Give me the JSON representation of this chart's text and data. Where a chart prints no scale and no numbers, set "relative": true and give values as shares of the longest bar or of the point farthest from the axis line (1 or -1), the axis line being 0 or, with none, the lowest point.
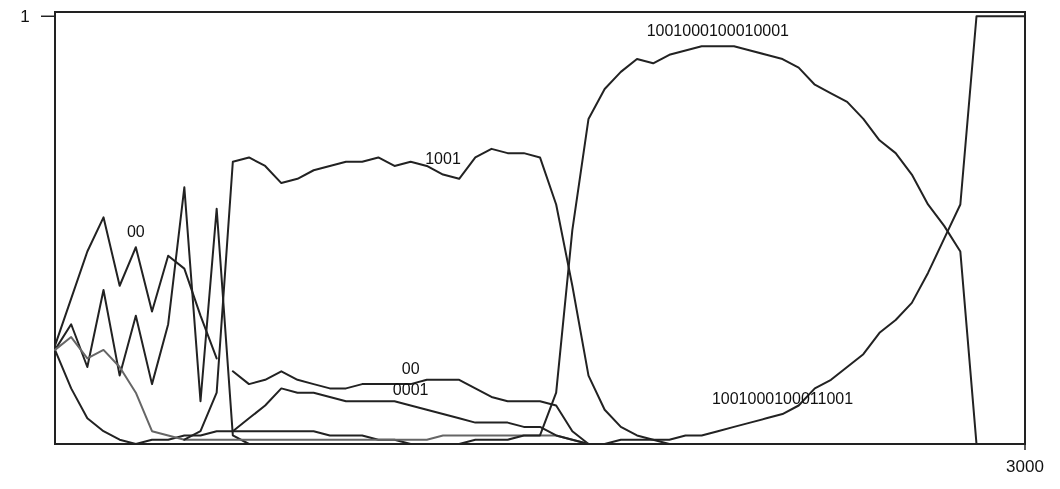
{
  "chart_data": {
    "type": "line",
    "relative": true,
    "marker": "none",
    "line_style": "solid",
    "categories": [
      null,
      null,
      null,
      null,
      null,
      null,
      null,
      null,
      null,
      null,
      null,
      null,
      null,
      null,
      null,
      null,
      null,
      null,
      null,
      null,
      null,
      null,
      null,
      null,
      null,
      null,
      null,
      null,
      null,
      null,
      null,
      null,
      null,
      null,
      null,
      null,
      null,
      null,
      null,
      null,
      null,
      null,
      null,
      null,
      null,
      null,
      null,
      null,
      null,
      null,
      null,
      null,
      null,
      null,
      null,
      null,
      null,
      null,
      null,
      null,
      null
    ],
    "series": [
      {
        "name": "00",
        "color": "#222222",
        "values": [
          0.23,
          0.34,
          0.45,
          0.53,
          0.37,
          0.46,
          0.31,
          0.44,
          0.41,
          0.3,
          0.2,
          null,
          null,
          null,
          null,
          null,
          null,
          null,
          null,
          null,
          null,
          null,
          null,
          null,
          null,
          null,
          null,
          null,
          null,
          null,
          null,
          null,
          null,
          null,
          null,
          null,
          null,
          null,
          null,
          null,
          null,
          null,
          null,
          null,
          null,
          null,
          null,
          null,
          null,
          null,
          null,
          null,
          null,
          null,
          null,
          null,
          null,
          null,
          null,
          null,
          null
        ]
      },
      {
        "name": "00",
        "color": "#222222",
        "values": [
          null,
          null,
          null,
          null,
          null,
          null,
          null,
          null,
          null,
          null,
          null,
          0.17,
          0.14,
          0.15,
          0.17,
          0.15,
          0.14,
          0.13,
          0.13,
          0.14,
          0.14,
          0.14,
          0.14,
          0.15,
          0.15,
          0.15,
          0.13,
          0.11,
          0.1,
          0.1,
          0.1,
          0.09,
          0.03,
          0,
          null,
          null,
          null,
          null,
          null,
          null,
          null,
          null,
          null,
          null,
          null,
          null,
          null,
          null,
          null,
          null,
          null,
          null,
          null,
          null,
          null,
          null,
          null,
          null,
          null,
          null,
          null
        ]
      },
      {
        "color": "#222222",
        "values": [
          0.22,
          0.28,
          0.18,
          0.36,
          0.16,
          0.3,
          0.14,
          0.28,
          0.6,
          0.1,
          0.55,
          0.02,
          0,
          null,
          null,
          null,
          null,
          null,
          null,
          null,
          null,
          null,
          null,
          null,
          null,
          null,
          null,
          null,
          null,
          null,
          null,
          null,
          null,
          null,
          null,
          null,
          null,
          null,
          null,
          null,
          null,
          null,
          null,
          null,
          null,
          null,
          null,
          null,
          null,
          null,
          null,
          null,
          null,
          null,
          null,
          null,
          null,
          null,
          null,
          null,
          null
        ]
      },
      {
        "color": "#222222",
        "values": [
          0.22,
          0.13,
          0.06,
          0.03,
          0.01,
          0,
          0.01,
          0.01,
          0.02,
          0.02,
          0.03,
          0.03,
          0.03,
          0.03,
          0.03,
          0.03,
          0.03,
          0.02,
          0.02,
          0.02,
          0.01,
          0.01,
          0,
          null,
          null,
          null,
          null,
          null,
          null,
          null,
          null,
          null,
          null,
          null,
          null,
          null,
          null,
          null,
          null,
          null,
          null,
          null,
          null,
          null,
          null,
          null,
          null,
          null,
          null,
          null,
          null,
          null,
          null,
          null,
          null,
          null,
          null,
          null,
          null,
          null,
          null
        ]
      },
      {
        "color": "#666666",
        "values": [
          0.22,
          0.25,
          0.2,
          0.22,
          0.18,
          0.12,
          0.03,
          0.02,
          0.01,
          0.01,
          0.01,
          0.01,
          0.01,
          0.01,
          0.01,
          0.01,
          0.01,
          0.01,
          0.01,
          0.01,
          0.01,
          0.01,
          0.01,
          0.01,
          0.02,
          0.02,
          0.02,
          0.02,
          0.02,
          0.02,
          0.02,
          0.02,
          0.01,
          0,
          null,
          null,
          null,
          null,
          null,
          null,
          null,
          null,
          null,
          null,
          null,
          null,
          null,
          null,
          null,
          null,
          null,
          null,
          null,
          null,
          null,
          null,
          null,
          null,
          null,
          null,
          null
        ]
      },
      {
        "name": "1001",
        "color": "#222222",
        "values": [
          null,
          null,
          null,
          null,
          null,
          null,
          null,
          null,
          0.01,
          0.03,
          0.12,
          0.66,
          0.67,
          0.65,
          0.61,
          0.62,
          0.64,
          0.65,
          0.66,
          0.66,
          0.67,
          0.65,
          0.66,
          0.65,
          0.63,
          0.62,
          0.67,
          0.69,
          0.68,
          0.68,
          0.67,
          0.56,
          0.37,
          0.16,
          0.08,
          0.04,
          0.02,
          0.01,
          0,
          0,
          null,
          null,
          null,
          null,
          null,
          null,
          null,
          null,
          null,
          null,
          null,
          null,
          null,
          null,
          null,
          null,
          null,
          null,
          null,
          null,
          null
        ]
      },
      {
        "name": "0001",
        "color": "#222222",
        "values": [
          null,
          null,
          null,
          null,
          null,
          null,
          null,
          null,
          null,
          null,
          null,
          0.03,
          0.06,
          0.09,
          0.13,
          0.12,
          0.12,
          0.11,
          0.1,
          0.1,
          0.1,
          0.1,
          0.09,
          0.08,
          0.07,
          0.06,
          0.05,
          0.05,
          0.05,
          0.04,
          0.04,
          0.02,
          0.01,
          0,
          null,
          null,
          null,
          null,
          null,
          null,
          null,
          null,
          null,
          null,
          null,
          null,
          null,
          null,
          null,
          null,
          null,
          null,
          null,
          null,
          null,
          null,
          null,
          null,
          null,
          null,
          null
        ]
      },
      {
        "name": "1001000100010001",
        "color": "#222222",
        "values": [
          null,
          null,
          null,
          null,
          null,
          null,
          null,
          null,
          null,
          null,
          null,
          null,
          null,
          null,
          null,
          null,
          null,
          null,
          null,
          null,
          null,
          null,
          null,
          null,
          0,
          0,
          0.01,
          0.01,
          0.01,
          0.02,
          0.02,
          0.12,
          0.5,
          0.76,
          0.83,
          0.87,
          0.9,
          0.89,
          0.91,
          0.92,
          0.93,
          0.93,
          0.93,
          0.92,
          0.91,
          0.9,
          0.88,
          0.84,
          0.82,
          0.8,
          0.76,
          0.71,
          0.68,
          0.63,
          0.56,
          0.51,
          0.45,
          0,
          null,
          null,
          null
        ]
      },
      {
        "name": "1001000100011001",
        "color": "#222222",
        "values": [
          null,
          null,
          null,
          null,
          null,
          null,
          null,
          null,
          null,
          null,
          null,
          null,
          null,
          null,
          null,
          null,
          null,
          null,
          null,
          null,
          null,
          null,
          null,
          null,
          null,
          null,
          null,
          null,
          null,
          null,
          0,
          0,
          0,
          0,
          0,
          0.01,
          0.01,
          0.01,
          0.01,
          0.02,
          0.02,
          0.03,
          0.04,
          0.05,
          0.06,
          0.07,
          0.09,
          0.13,
          0.15,
          0.18,
          0.21,
          0.26,
          0.29,
          0.33,
          0.4,
          0.48,
          0.56,
          1,
          1,
          1,
          1
        ]
      }
    ],
    "annotations": [
      "1",
      "3000"
    ]
  }
}
